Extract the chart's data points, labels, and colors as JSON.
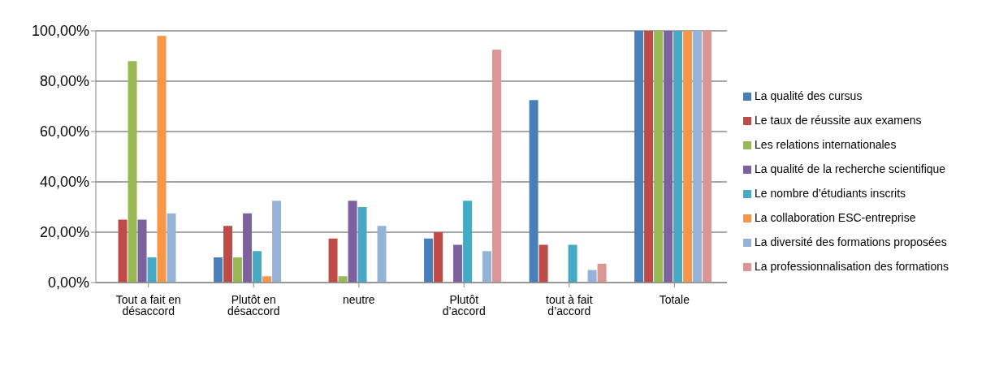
{
  "chart_data": {
    "type": "bar",
    "categories": [
      "Tout a fait en désaccord",
      "Plutôt en désaccord",
      "neutre",
      "Plutôt d’accord",
      "tout à fait d’accord",
      "Totale"
    ],
    "series": [
      {
        "name": "La qualité des cursus",
        "color": "#4a7ebb",
        "values": [
          0,
          10,
          0,
          17.5,
          72.5,
          100
        ]
      },
      {
        "name": "Le taux de réussite aux examens",
        "color": "#be4b48",
        "values": [
          25,
          22.5,
          17.5,
          20,
          15,
          100
        ]
      },
      {
        "name": "Les relations internationales",
        "color": "#98b954",
        "values": [
          88,
          10,
          2.5,
          0,
          0,
          100
        ]
      },
      {
        "name": "La qualité de la recherche scientifique",
        "color": "#7d60a0",
        "values": [
          25,
          27.5,
          32.5,
          15,
          0,
          100
        ]
      },
      {
        "name": "Le nombre d’étudiants inscrits",
        "color": "#46aac5",
        "values": [
          10,
          12.5,
          30,
          32.5,
          15,
          100
        ]
      },
      {
        "name": "La collaboration ESC-entreprise",
        "color": "#f79646",
        "values": [
          98,
          2.5,
          0,
          0,
          0,
          100
        ]
      },
      {
        "name": "La diversité des formations proposées",
        "color": "#95b3d7",
        "values": [
          27.5,
          32.5,
          22.5,
          12.5,
          5,
          100
        ]
      },
      {
        "name": "La professionnalisation des formations",
        "color": "#d99694",
        "values": [
          0,
          0,
          0,
          92.5,
          7.5,
          100
        ]
      }
    ],
    "ylim": [
      0,
      100
    ],
    "yticks": [
      {
        "value": 0,
        "label": "0,00%"
      },
      {
        "value": 20,
        "label": "20,00%"
      },
      {
        "value": 40,
        "label": "40,00%"
      },
      {
        "value": 60,
        "label": "60,00%"
      },
      {
        "value": 80,
        "label": "80,00%"
      },
      {
        "value": 100,
        "label": "100,00%"
      }
    ],
    "grid": "y",
    "legend": "right"
  }
}
